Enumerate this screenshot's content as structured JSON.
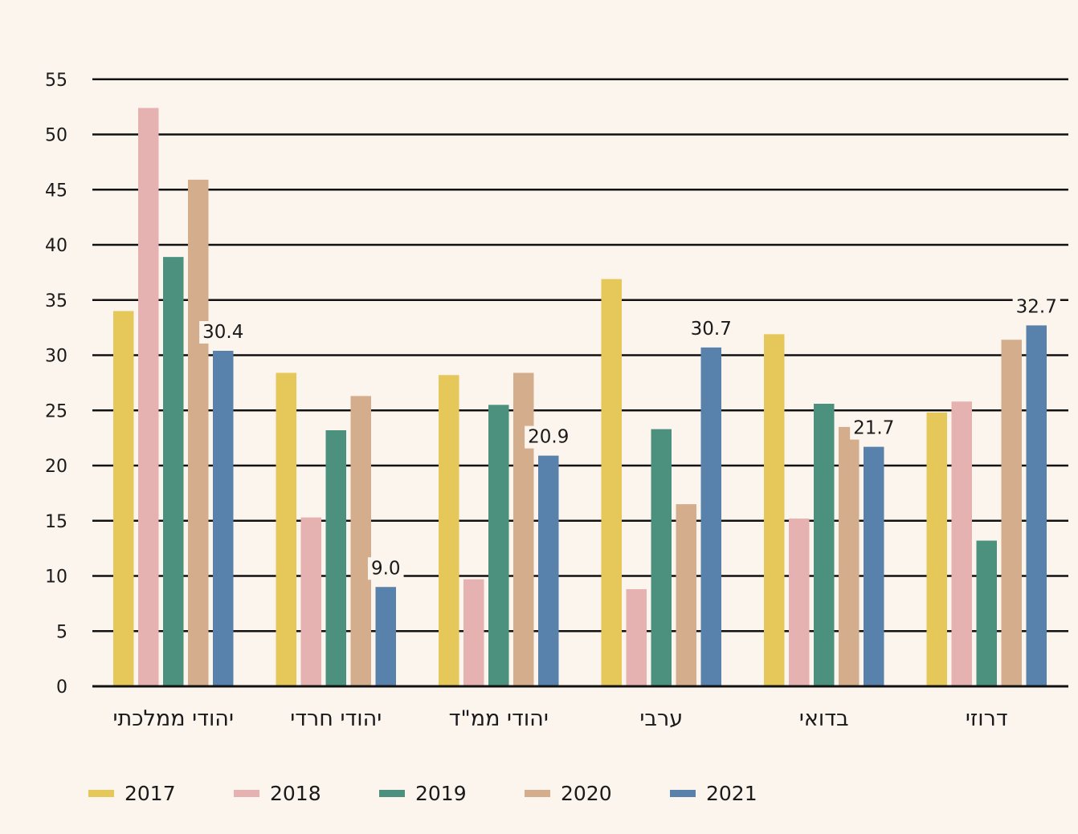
{
  "chart_data": {
    "type": "bar",
    "categories": [
      "יהודי ממלכתי",
      "יהודי חרדי",
      "יהודי ממ\"ד",
      "ערבי",
      "בדואי",
      "דרוזי"
    ],
    "series": [
      {
        "name": "2017",
        "color": "#e5c75a",
        "values": [
          34.0,
          28.4,
          28.2,
          36.9,
          31.9,
          24.8
        ]
      },
      {
        "name": "2018",
        "color": "#e5b2b1",
        "values": [
          52.4,
          15.3,
          9.7,
          8.8,
          15.2,
          25.8
        ]
      },
      {
        "name": "2019",
        "color": "#4b917e",
        "values": [
          38.9,
          23.2,
          25.5,
          23.3,
          25.6,
          13.2
        ]
      },
      {
        "name": "2020",
        "color": "#d4ad8d",
        "values": [
          45.9,
          26.3,
          28.4,
          16.5,
          23.5,
          31.4
        ]
      },
      {
        "name": "2021",
        "color": "#5881ab",
        "values": [
          30.4,
          9.0,
          20.9,
          30.7,
          21.7,
          32.7
        ]
      }
    ],
    "data_labels": [
      "30.4",
      "9.0",
      "20.9",
      "30.7",
      "21.7",
      "32.7"
    ],
    "y_ticks": [
      0,
      5,
      10,
      15,
      20,
      25,
      30,
      35,
      40,
      45,
      50,
      55
    ],
    "ylim": [
      0,
      55
    ],
    "grid": true,
    "legend_position": "bottom"
  }
}
